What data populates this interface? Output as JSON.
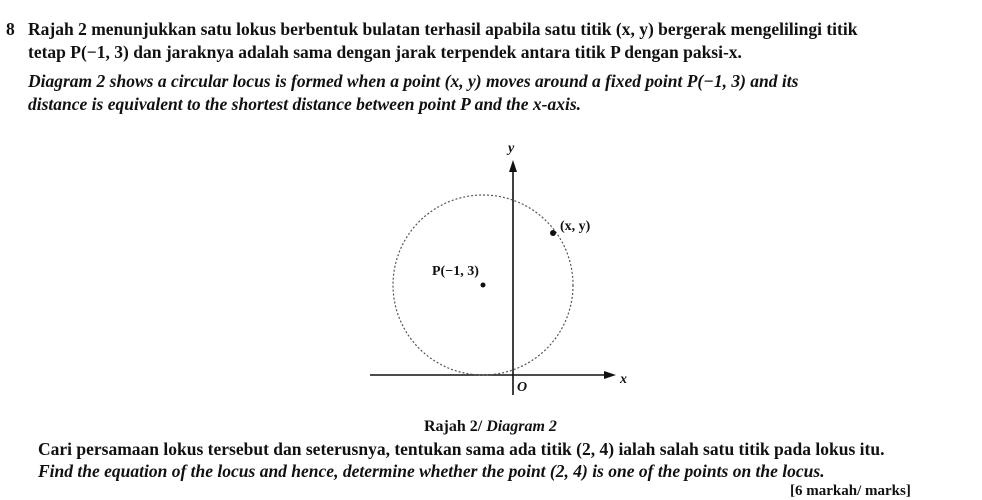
{
  "question": {
    "number": "8",
    "intro_malay": [
      "Rajah 2 menunjukkan satu lokus berbentuk bulatan terhasil apabila satu titik (x, y) bergerak mengelilingi titik",
      "tetap P(−1, 3) dan jaraknya adalah sama dengan jarak terpendek antara titik P dengan paksi-x."
    ],
    "intro_english": [
      "Diagram 2 shows a circular locus is formed when a point (x, y) moves around a fixed point P(−1, 3) and its",
      "distance is equivalent to the shortest distance between point P and the x-axis."
    ],
    "diagram": {
      "y_axis": "y",
      "x_axis": "x",
      "origin": "O",
      "moving_point": "(x, y)",
      "fixed_point": "P(−1, 3)"
    },
    "caption": {
      "malay": "Rajah 2/",
      "english": "Diagram 2"
    },
    "task_malay": "Cari persamaan lokus tersebut dan seterusnya, tentukan sama ada titik (2, 4) ialah salah satu titik pada lokus itu.",
    "task_english": "Find the equation of the locus and hence, determine whether the point (2, 4) is one of the points on the locus.",
    "marks": "[6 markah/ marks]"
  }
}
